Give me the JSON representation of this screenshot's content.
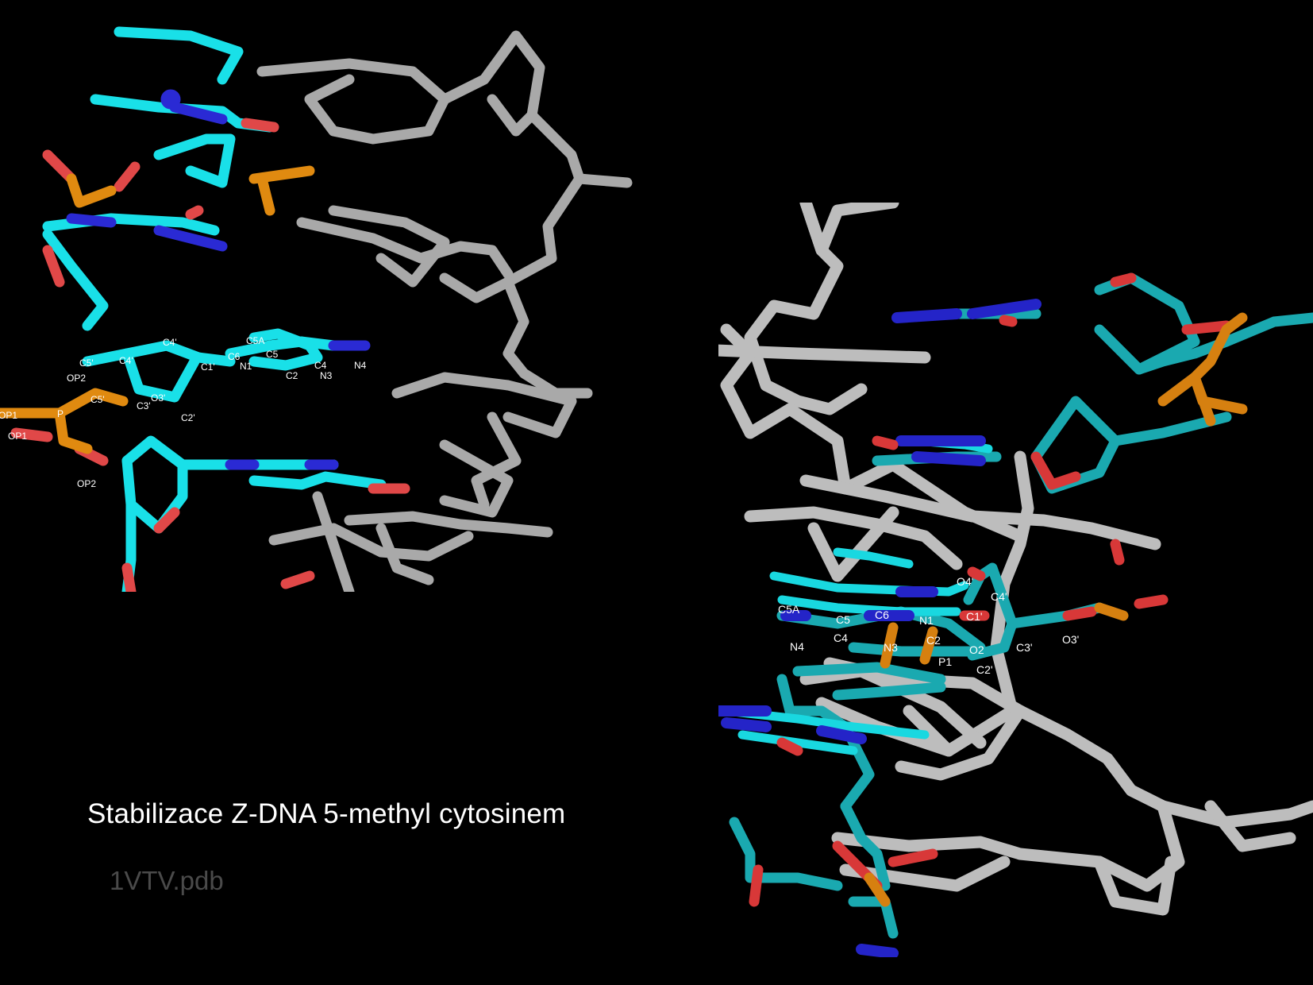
{
  "caption": {
    "title": "Stabilizace Z-DNA 5-methyl cytosinem",
    "pdb_id": "1VTV.pdb"
  },
  "colors": {
    "background": "#000000",
    "carbon_cyan": "#19e0e8",
    "carbon_teal": "#1ba2a8",
    "nitrogen": "#2828d8",
    "oxygen": "#e04848",
    "phosphorus": "#e08a10",
    "strand_grey": "#b8b8b8"
  },
  "left_panel": {
    "atom_labels": [
      "C5A",
      "C4'",
      "C6",
      "C5",
      "C5'",
      "C4'",
      "C4",
      "N4",
      "C1'",
      "N1",
      "C2",
      "N3",
      "OP2",
      "C5'",
      "C3'",
      "O3'",
      "C2'",
      "OP1",
      "P",
      "OP1",
      "OP2"
    ]
  },
  "right_panel": {
    "atom_labels": [
      "O4'",
      "C4'",
      "C5A",
      "C6",
      "C5",
      "N1",
      "C1'",
      "N4",
      "C4",
      "N3",
      "C2",
      "O2",
      "C3'",
      "O3'",
      "P1",
      "C2'"
    ]
  }
}
